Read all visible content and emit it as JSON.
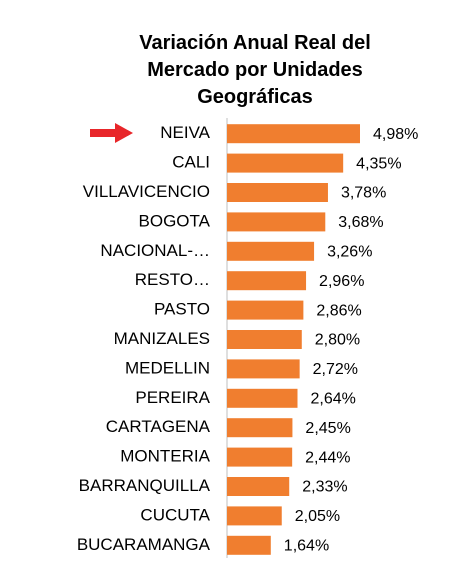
{
  "chart_data": {
    "type": "bar",
    "orientation": "horizontal",
    "title": "Variación Anual Real del Mercado por Unidades Geográficas",
    "categories": [
      "NEIVA",
      "CALI",
      "VILLAVICENCIO",
      "BOGOTA",
      "NACIONAL-…",
      "RESTO…",
      "PASTO",
      "MANIZALES",
      "MEDELLIN",
      "PEREIRA",
      "CARTAGENA",
      "MONTERIA",
      "BARRANQUILLA",
      "CUCUTA",
      "BUCARAMANGA"
    ],
    "values": [
      4.98,
      4.35,
      3.78,
      3.68,
      3.26,
      2.96,
      2.86,
      2.8,
      2.72,
      2.64,
      2.45,
      2.44,
      2.33,
      2.05,
      1.64
    ],
    "value_labels": [
      "4,98%",
      "4,35%",
      "3,78%",
      "3,68%",
      "3,26%",
      "2,96%",
      "2,86%",
      "2,80%",
      "2,72%",
      "2,64%",
      "2,45%",
      "2,44%",
      "2,33%",
      "2,05%",
      "1,64%"
    ],
    "color": "#f07e2f"
  }
}
